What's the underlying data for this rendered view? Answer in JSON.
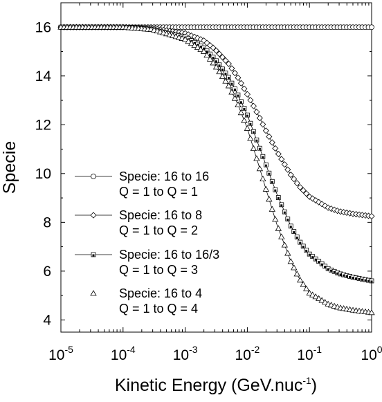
{
  "chart_data": {
    "type": "line",
    "xlabel": "Kinetic Energy (GeV.nuc",
    "xlabel_sup": "-1",
    "xlabel_close": ")",
    "ylabel": "Specie",
    "xscale": "log",
    "xlim": [
      1e-05,
      1
    ],
    "ylim": [
      3.5,
      17
    ],
    "grid": false,
    "legend_position": "left-center",
    "x_ticks": [
      {
        "base": "10",
        "exp": "-5",
        "value": 1e-05
      },
      {
        "base": "10",
        "exp": "-4",
        "value": 0.0001
      },
      {
        "base": "10",
        "exp": "-3",
        "value": 0.001
      },
      {
        "base": "10",
        "exp": "-2",
        "value": 0.01
      },
      {
        "base": "10",
        "exp": "-1",
        "value": 0.1
      },
      {
        "base": "10",
        "exp": "0",
        "value": 1
      }
    ],
    "y_ticks": [
      4,
      6,
      8,
      10,
      12,
      14,
      16
    ],
    "series": [
      {
        "name": "Specie: 16 to 16",
        "sub": "Q = 1 to Q = 1",
        "marker": "circle",
        "x": [
          1e-05,
          0.0001,
          0.001,
          0.003,
          0.01,
          0.03,
          0.1,
          0.3,
          1
        ],
        "y": [
          16,
          16,
          16,
          16,
          16,
          16,
          16,
          16,
          16
        ]
      },
      {
        "name": "Specie: 16 to 8",
        "sub": "Q = 1 to Q = 2",
        "marker": "diamond",
        "x": [
          1e-05,
          0.0001,
          0.0003,
          0.001,
          0.002,
          0.003,
          0.005,
          0.007,
          0.01,
          0.015,
          0.02,
          0.03,
          0.05,
          0.07,
          0.1,
          0.2,
          0.3,
          0.5,
          1
        ],
        "y": [
          16,
          16,
          15.95,
          15.75,
          15.45,
          15.1,
          14.5,
          13.95,
          13.25,
          12.4,
          11.75,
          10.9,
          9.95,
          9.45,
          9.05,
          8.6,
          8.45,
          8.35,
          8.25
        ]
      },
      {
        "name": "Specie: 16 to 16/3",
        "sub": "Q = 1 to Q = 3",
        "marker": "square",
        "x": [
          1e-05,
          0.0001,
          0.0003,
          0.001,
          0.002,
          0.003,
          0.005,
          0.007,
          0.01,
          0.015,
          0.02,
          0.03,
          0.05,
          0.07,
          0.1,
          0.2,
          0.3,
          0.5,
          1
        ],
        "y": [
          16,
          16,
          15.9,
          15.6,
          15.15,
          14.7,
          13.95,
          13.25,
          12.4,
          11.2,
          10.35,
          9.15,
          7.85,
          7.2,
          6.7,
          6.1,
          5.9,
          5.75,
          5.6
        ]
      },
      {
        "name": "Specie: 16 to 4",
        "sub": "Q = 1 to Q = 4",
        "marker": "triangle",
        "x": [
          1e-05,
          0.0001,
          0.0003,
          0.001,
          0.002,
          0.003,
          0.005,
          0.007,
          0.01,
          0.015,
          0.02,
          0.03,
          0.05,
          0.07,
          0.1,
          0.2,
          0.3,
          0.5,
          1
        ],
        "y": [
          16,
          16,
          15.9,
          15.5,
          15.0,
          14.45,
          13.6,
          12.85,
          11.85,
          10.4,
          9.35,
          7.9,
          6.4,
          5.65,
          5.1,
          4.65,
          4.5,
          4.4,
          4.3
        ]
      }
    ]
  }
}
